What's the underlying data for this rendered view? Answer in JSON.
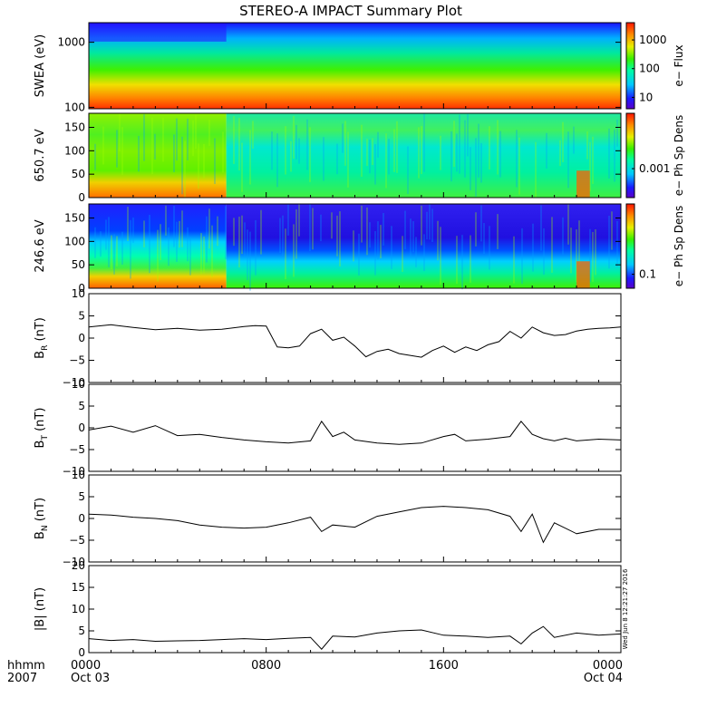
{
  "title": "STEREO-A IMPACT Summary Plot",
  "chart_data": [
    {
      "type": "heatmap",
      "panel": "swea",
      "ylabel": "SWEA (eV)",
      "yscale": "log",
      "ylim": [
        95,
        2000
      ],
      "yticks": [
        100,
        1000
      ],
      "ytick_labels": [
        "100",
        "1000"
      ],
      "colorbar_label": "e− Flux",
      "colorbar_scale": "log",
      "colorbar_ticks": [
        "10",
        "100",
        "1000"
      ],
      "colorbar_tick_values": [
        10,
        100,
        1000
      ],
      "colorbar_range": [
        4,
        4000
      ]
    },
    {
      "type": "heatmap",
      "panel": "pad-650",
      "ylabel": "650.7 eV",
      "ylim": [
        0,
        180
      ],
      "yticks": [
        0,
        50,
        100,
        150
      ],
      "ytick_labels": [
        "0",
        "50",
        "100",
        "150"
      ],
      "colorbar_label": "e− Ph Sp Dens",
      "colorbar_scale": "log",
      "colorbar_ticks": [
        "0.001"
      ],
      "colorbar_tick_values": [
        0.001
      ],
      "colorbar_range": [
        0.0003,
        0.01
      ]
    },
    {
      "type": "heatmap",
      "panel": "pad-246",
      "ylabel": "246.6 eV",
      "ylim": [
        0,
        180
      ],
      "yticks": [
        0,
        50,
        100,
        150
      ],
      "ytick_labels": [
        "0",
        "50",
        "100",
        "150"
      ],
      "colorbar_label": "e− Ph Sp Dens",
      "colorbar_scale": "log",
      "colorbar_ticks": [
        "0.1"
      ],
      "colorbar_tick_values": [
        0.1
      ],
      "colorbar_range": [
        0.07,
        0.6
      ]
    },
    {
      "type": "line",
      "panel": "br",
      "ylabel_main": "B",
      "ylabel_sub": "R",
      "ylabel_unit": "(nT)",
      "ylim": [
        -10,
        10
      ],
      "yticks": [
        -10,
        -5,
        0,
        5,
        10
      ],
      "ytick_labels": [
        "−10",
        "−5",
        "0",
        "5",
        "10"
      ],
      "x": [
        0,
        1,
        2,
        3,
        4,
        5,
        6,
        7,
        7.5,
        8,
        8.5,
        9,
        9.5,
        10,
        10.5,
        11,
        11.5,
        12,
        12.5,
        13,
        13.5,
        14,
        14.5,
        15,
        15.5,
        16,
        16.5,
        17,
        17.5,
        18,
        18.5,
        19,
        19.5,
        20,
        20.5,
        21,
        21.5,
        22,
        22.5,
        23,
        23.5,
        24
      ],
      "values": [
        2.5,
        3.0,
        2.4,
        1.9,
        2.2,
        1.8,
        2.0,
        2.6,
        2.8,
        2.7,
        -2.0,
        -2.2,
        -1.8,
        1.0,
        2.0,
        -0.5,
        0.2,
        -1.8,
        -4.2,
        -3.0,
        -2.5,
        -3.5,
        -3.9,
        -4.3,
        -2.8,
        -1.8,
        -3.2,
        -2.0,
        -2.8,
        -1.5,
        -0.8,
        1.5,
        0.0,
        2.5,
        1.2,
        0.6,
        0.8,
        1.6,
        2.0,
        2.2,
        2.3,
        2.5
      ]
    },
    {
      "type": "line",
      "panel": "bt",
      "ylabel_main": "B",
      "ylabel_sub": "T",
      "ylabel_unit": "(nT)",
      "ylim": [
        -10,
        10
      ],
      "yticks": [
        -10,
        -5,
        0,
        5,
        10
      ],
      "ytick_labels": [
        "−10",
        "−5",
        "0",
        "5",
        "10"
      ],
      "x": [
        0,
        1,
        2,
        3,
        4,
        5,
        6,
        7,
        8,
        9,
        10,
        10.5,
        11,
        11.5,
        12,
        13,
        14,
        15,
        16,
        16.5,
        17,
        18,
        19,
        19.5,
        20,
        20.5,
        21,
        21.5,
        22,
        23,
        24
      ],
      "values": [
        -0.5,
        0.4,
        -1.0,
        0.5,
        -1.8,
        -1.5,
        -2.2,
        -2.8,
        -3.2,
        -3.5,
        -3.0,
        1.5,
        -2.0,
        -1.0,
        -2.8,
        -3.5,
        -3.8,
        -3.5,
        -2.0,
        -1.5,
        -3.0,
        -2.6,
        -2.0,
        1.5,
        -1.5,
        -2.5,
        -3.0,
        -2.4,
        -3.0,
        -2.6,
        -2.8
      ]
    },
    {
      "type": "line",
      "panel": "bn",
      "ylabel_main": "B",
      "ylabel_sub": "N",
      "ylabel_unit": "(nT)",
      "ylim": [
        -10,
        10
      ],
      "yticks": [
        -10,
        -5,
        0,
        5,
        10
      ],
      "ytick_labels": [
        "−10",
        "−5",
        "0",
        "5",
        "10"
      ],
      "x": [
        0,
        1,
        2,
        3,
        4,
        5,
        6,
        7,
        8,
        9,
        10,
        10.5,
        11,
        12,
        13,
        14,
        15,
        16,
        17,
        18,
        19,
        19.5,
        20,
        20.5,
        21,
        22,
        23,
        24
      ],
      "values": [
        1.0,
        0.8,
        0.3,
        0.0,
        -0.5,
        -1.5,
        -2.0,
        -2.2,
        -2.0,
        -1.0,
        0.3,
        -3.0,
        -1.5,
        -2.0,
        0.5,
        1.5,
        2.5,
        2.8,
        2.5,
        2.0,
        0.5,
        -3.0,
        1.0,
        -5.5,
        -1.0,
        -3.5,
        -2.5,
        -2.5
      ]
    },
    {
      "type": "line",
      "panel": "bmag",
      "ylabel_main": "|B|",
      "ylabel_unit": "(nT)",
      "ylim": [
        0,
        20
      ],
      "yticks": [
        0,
        5,
        10,
        15,
        20
      ],
      "ytick_labels": [
        "0",
        "5",
        "10",
        "15",
        "20"
      ],
      "x": [
        0,
        1,
        2,
        3,
        4,
        5,
        6,
        7,
        8,
        9,
        10,
        10.5,
        11,
        12,
        13,
        14,
        15,
        16,
        17,
        18,
        19,
        19.5,
        20,
        20.5,
        21,
        22,
        23,
        24
      ],
      "values": [
        3.2,
        2.8,
        3.0,
        2.6,
        2.7,
        2.8,
        3.0,
        3.2,
        3.0,
        3.3,
        3.5,
        0.8,
        3.8,
        3.6,
        4.5,
        5.0,
        5.2,
        4.0,
        3.8,
        3.5,
        3.8,
        2.0,
        4.5,
        6.0,
        3.5,
        4.5,
        4.0,
        4.3
      ]
    }
  ],
  "x_axis": {
    "xlim": [
      0,
      24
    ],
    "tick_values": [
      0,
      8,
      16,
      24
    ],
    "tick_labels_top": [
      "0000",
      "0800",
      "1600",
      "0000"
    ],
    "tick_labels_bottom": [
      "Oct 03",
      "",
      "",
      "Oct 04"
    ],
    "left_label_top": "hhmm",
    "left_label_bottom": "2007"
  },
  "timestamp": "Wed Jun  8 12:21:27 2016"
}
